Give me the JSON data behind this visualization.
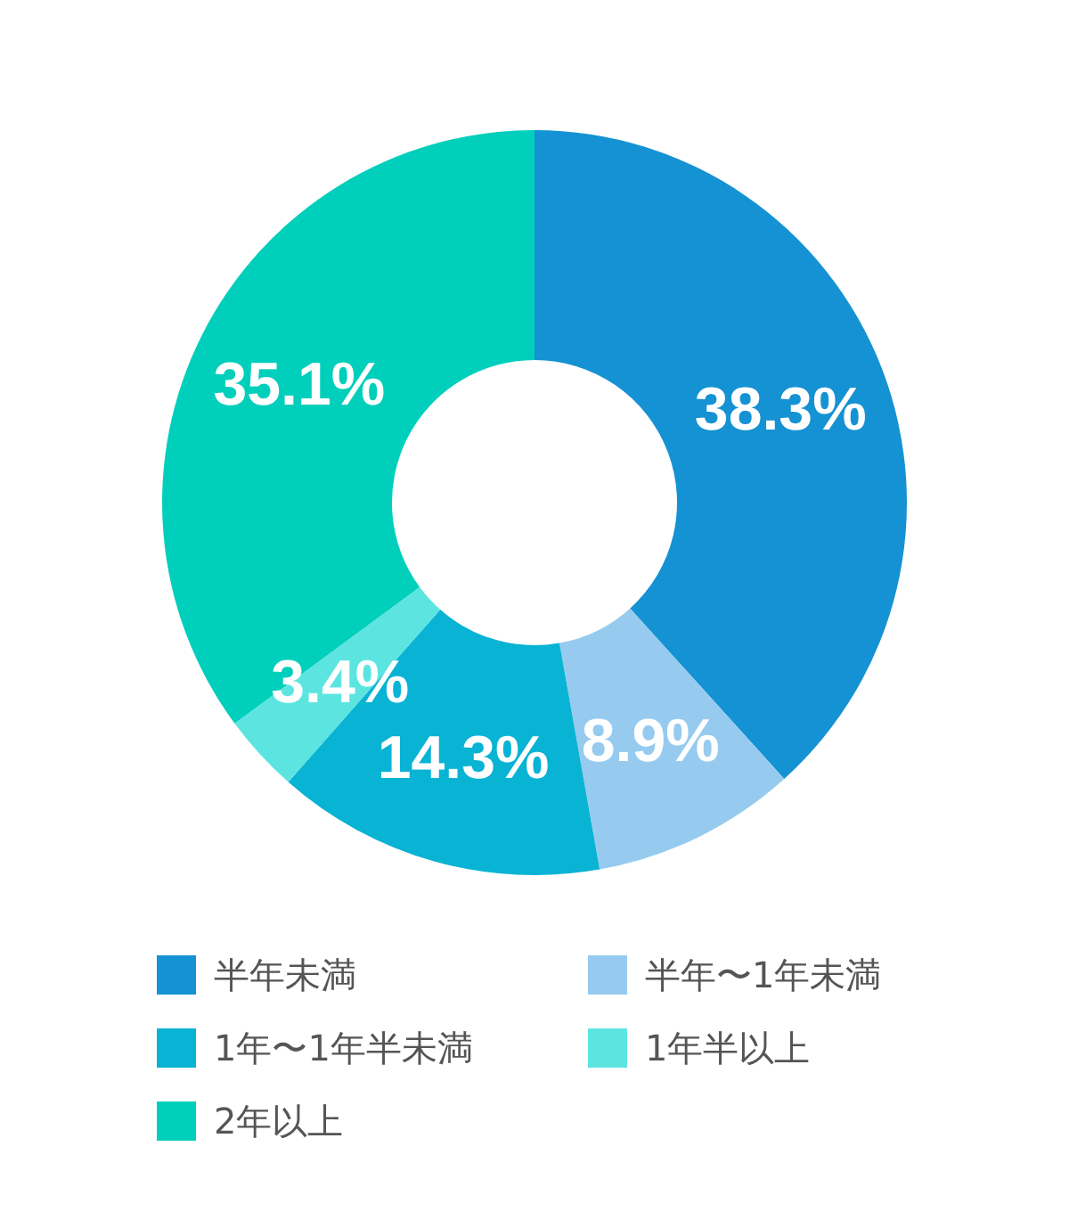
{
  "chart_data": {
    "type": "donut",
    "categories": [
      "半年未満",
      "半年〜1年未満",
      "1年〜1年半未満",
      "1年半以上",
      "2年以上"
    ],
    "values": [
      38.3,
      8.9,
      14.3,
      3.4,
      35.1
    ],
    "colors": [
      "#1592d3",
      "#96cbef",
      "#08b3d4",
      "#5ce5e0",
      "#00cfbb"
    ],
    "value_labels": [
      "38.3%",
      "8.9%",
      "14.3%",
      "3.4%",
      "35.1%"
    ],
    "legend": "bottom"
  }
}
